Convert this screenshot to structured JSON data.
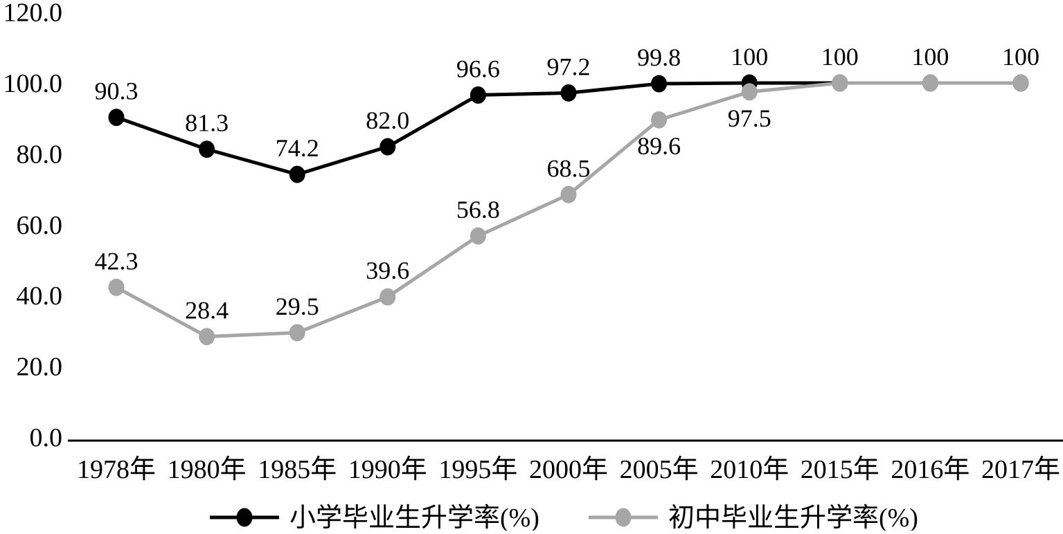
{
  "chart_data": {
    "type": "line",
    "title": "",
    "categories": [
      "1978年",
      "1980年",
      "1985年",
      "1990年",
      "1995年",
      "2000年",
      "2005年",
      "2010年",
      "2015年",
      "2016年",
      "2017年"
    ],
    "series": [
      {
        "name": "小学毕业生升学率(%)",
        "color": "#000000",
        "values": [
          90.3,
          81.3,
          74.2,
          82.0,
          96.6,
          97.2,
          99.8,
          100,
          100,
          100,
          100
        ],
        "labels": [
          "90.3",
          "81.3",
          "74.2",
          "82.0",
          "96.6",
          "97.2",
          "99.8",
          "100",
          "100",
          "100",
          "100"
        ],
        "label_positions": [
          "above",
          "above",
          "above",
          "above",
          "above",
          "above",
          "above",
          "above",
          "above",
          "above",
          "above"
        ]
      },
      {
        "name": "初中毕业生升学率(%)",
        "color": "#a6a6a6",
        "values": [
          42.3,
          28.4,
          29.5,
          39.6,
          56.8,
          68.5,
          89.6,
          97.5,
          100,
          100,
          100
        ],
        "labels": [
          "42.3",
          "28.4",
          "29.5",
          "39.6",
          "56.8",
          "68.5",
          "89.6",
          "97.5",
          null,
          null,
          null
        ],
        "label_positions": [
          "above",
          "above",
          "above",
          "above",
          "above",
          "above",
          "below",
          "below",
          null,
          null,
          null
        ]
      }
    ],
    "y_axis": {
      "min": 0,
      "max": 120,
      "tick_step": 20,
      "tick_labels": [
        "0.0",
        "20.0",
        "40.0",
        "60.0",
        "80.0",
        "100.0",
        "120.0"
      ]
    },
    "x_axis": {
      "label": ""
    },
    "ylabel": "",
    "xlabel": "",
    "grid": false,
    "legend_position": "bottom",
    "axis_color": "#000000",
    "text_color": "#000000",
    "background_color": "#ffffff"
  }
}
